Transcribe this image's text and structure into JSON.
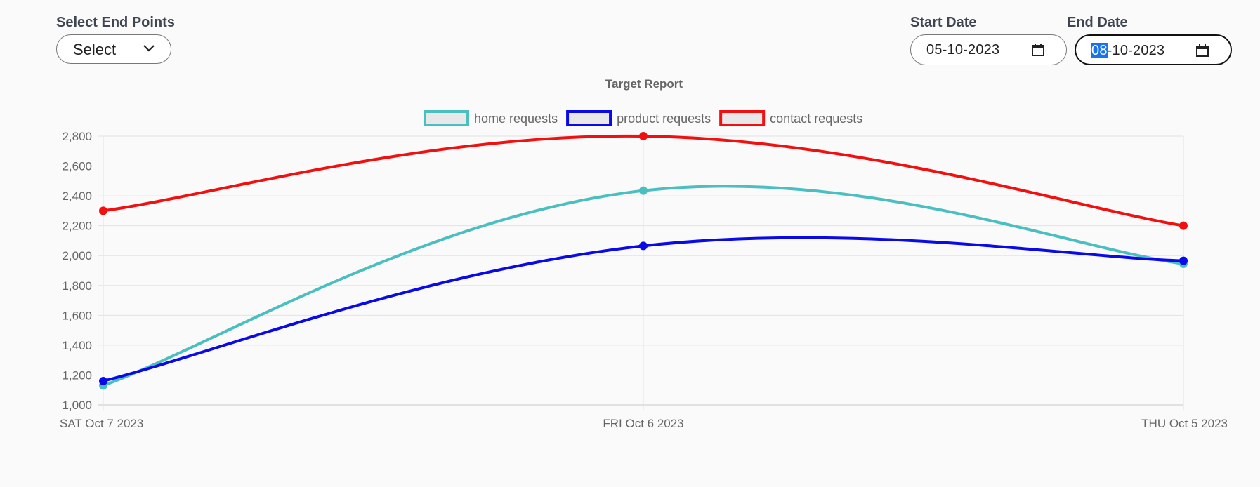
{
  "controls": {
    "endpoints_label": "Select End Points",
    "endpoints_value": "Select",
    "start_label": "Start Date",
    "start_value": "05-10-2023",
    "end_label": "End Date",
    "end_value_day": "08",
    "end_value_rest": "-10-2023"
  },
  "chart_data": {
    "type": "line",
    "title": "Target Report",
    "categories": [
      "SAT Oct 7 2023",
      "FRI Oct 6 2023",
      "THU Oct 5 2023"
    ],
    "series": [
      {
        "name": "home requests",
        "color": "#4bbfc0",
        "values": [
          1130,
          2435,
          1945
        ]
      },
      {
        "name": "product requests",
        "color": "#0a0ae8",
        "values": [
          1160,
          2065,
          1965
        ]
      },
      {
        "name": "contact requests",
        "color": "#f20f0f",
        "values": [
          2300,
          2800,
          2200
        ]
      }
    ],
    "ylim": [
      1000,
      2800
    ],
    "yticks": [
      "2,800",
      "2,600",
      "2,400",
      "2,200",
      "2,000",
      "1,800",
      "1,600",
      "1,400",
      "1,200",
      "1,000"
    ],
    "legend_position": "top",
    "grid": true
  }
}
